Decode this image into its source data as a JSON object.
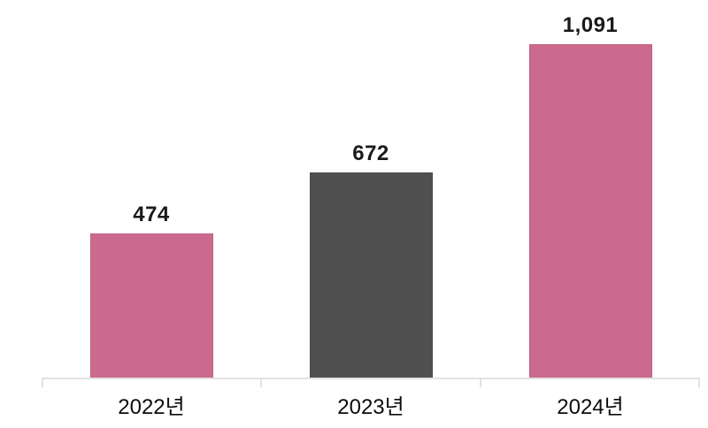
{
  "chart_data": {
    "type": "bar",
    "title": "",
    "xlabel": "",
    "ylabel": "",
    "categories": [
      "2022년",
      "2023년",
      "2024년"
    ],
    "values": [
      474,
      672,
      1091
    ],
    "value_labels": [
      "474",
      "672",
      "1,091"
    ],
    "bar_colors": [
      "#cc6a8e",
      "#505050",
      "#cc6a8e"
    ],
    "bar_border_colors": [
      "#bd5f83",
      "#4c4c4c",
      "#bd5f83"
    ],
    "ylim": [
      0,
      1200
    ],
    "grid": false,
    "legend": false,
    "axis_line_color": "#e2e2e2",
    "value_label_color": "#1a1a1a",
    "category_label_color": "#0d0d0d",
    "background_color": "#ffffff"
  }
}
